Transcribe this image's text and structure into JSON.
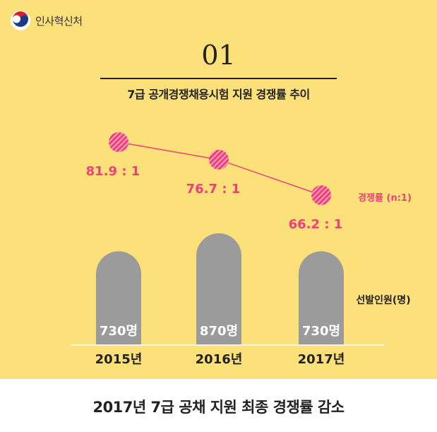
{
  "logo": {
    "text": "인사혁신처",
    "icon": "taegeuk-emblem-icon"
  },
  "number": "01",
  "subtitle": "7급 공개경쟁채용시험 지원 경쟁률 추이",
  "footer": "2017년 7급 공채 지원 최종 경쟁률 감소",
  "colors": {
    "background": "#fce07a",
    "line": "#ef3f7a",
    "bar": "#9b9b9b",
    "text": "#222222"
  },
  "chart_data": {
    "type": "bar+line",
    "categories": [
      "2015년",
      "2016년",
      "2017년"
    ],
    "series": [
      {
        "name": "경쟁률 (n:1)",
        "type": "line",
        "values": [
          81.9,
          76.7,
          66.2
        ],
        "labels": [
          "81.9 : 1",
          "76.7 : 1",
          "66.2 : 1"
        ]
      },
      {
        "name": "선발인원(명)",
        "type": "bar",
        "values": [
          730,
          870,
          730
        ],
        "labels": [
          "730명",
          "870명",
          "730명"
        ]
      }
    ]
  }
}
